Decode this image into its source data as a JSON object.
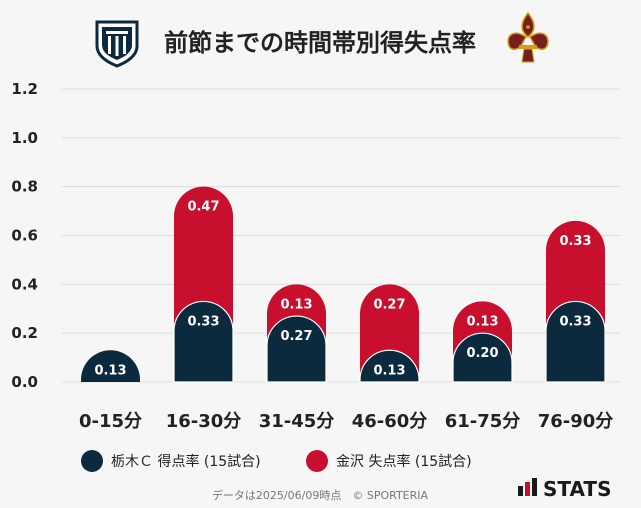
{
  "chart_data": {
    "type": "bar",
    "stacked": true,
    "title": "前節までの時間帯別得失点率",
    "categories": [
      "0-15分",
      "16-30分",
      "31-45分",
      "46-60分",
      "61-75分",
      "76-90分"
    ],
    "series": [
      {
        "name": "栃木Ｃ 得点率 (15試合)",
        "values": [
          0.13,
          0.33,
          0.27,
          0.13,
          0.2,
          0.33
        ],
        "color": "#0b2a3e"
      },
      {
        "name": "金沢 失点率 (15試合)",
        "values": [
          0.0,
          0.47,
          0.13,
          0.27,
          0.13,
          0.33
        ],
        "color": "#c8102e"
      }
    ],
    "data_labels": [
      [
        "0.13",
        "0.33",
        "0.27",
        "0.13",
        "0.20",
        "0.33"
      ],
      [
        "",
        "0.47",
        "0.13",
        "0.27",
        "0.13",
        "0.33"
      ]
    ],
    "yticks": [
      "0.0",
      "0.2",
      "0.4",
      "0.6",
      "0.8",
      "1.0",
      "1.2"
    ],
    "ylim": [
      0,
      1.2
    ],
    "grid": true,
    "legend_position": "bottom"
  },
  "footer": {
    "note": "データは2025/06/09時点　© SPORTERIA",
    "brand": "STATS"
  },
  "colors": {
    "home": "#0b2a3e",
    "away": "#c8102e",
    "grid": "#dddddd",
    "background": "#f6f6f6"
  },
  "icons": {
    "home_logo": "tochigi-city-crest-icon",
    "away_logo": "kanazawa-fleur-de-lis-crest-icon",
    "brand_logo": "stats-bars-icon"
  }
}
